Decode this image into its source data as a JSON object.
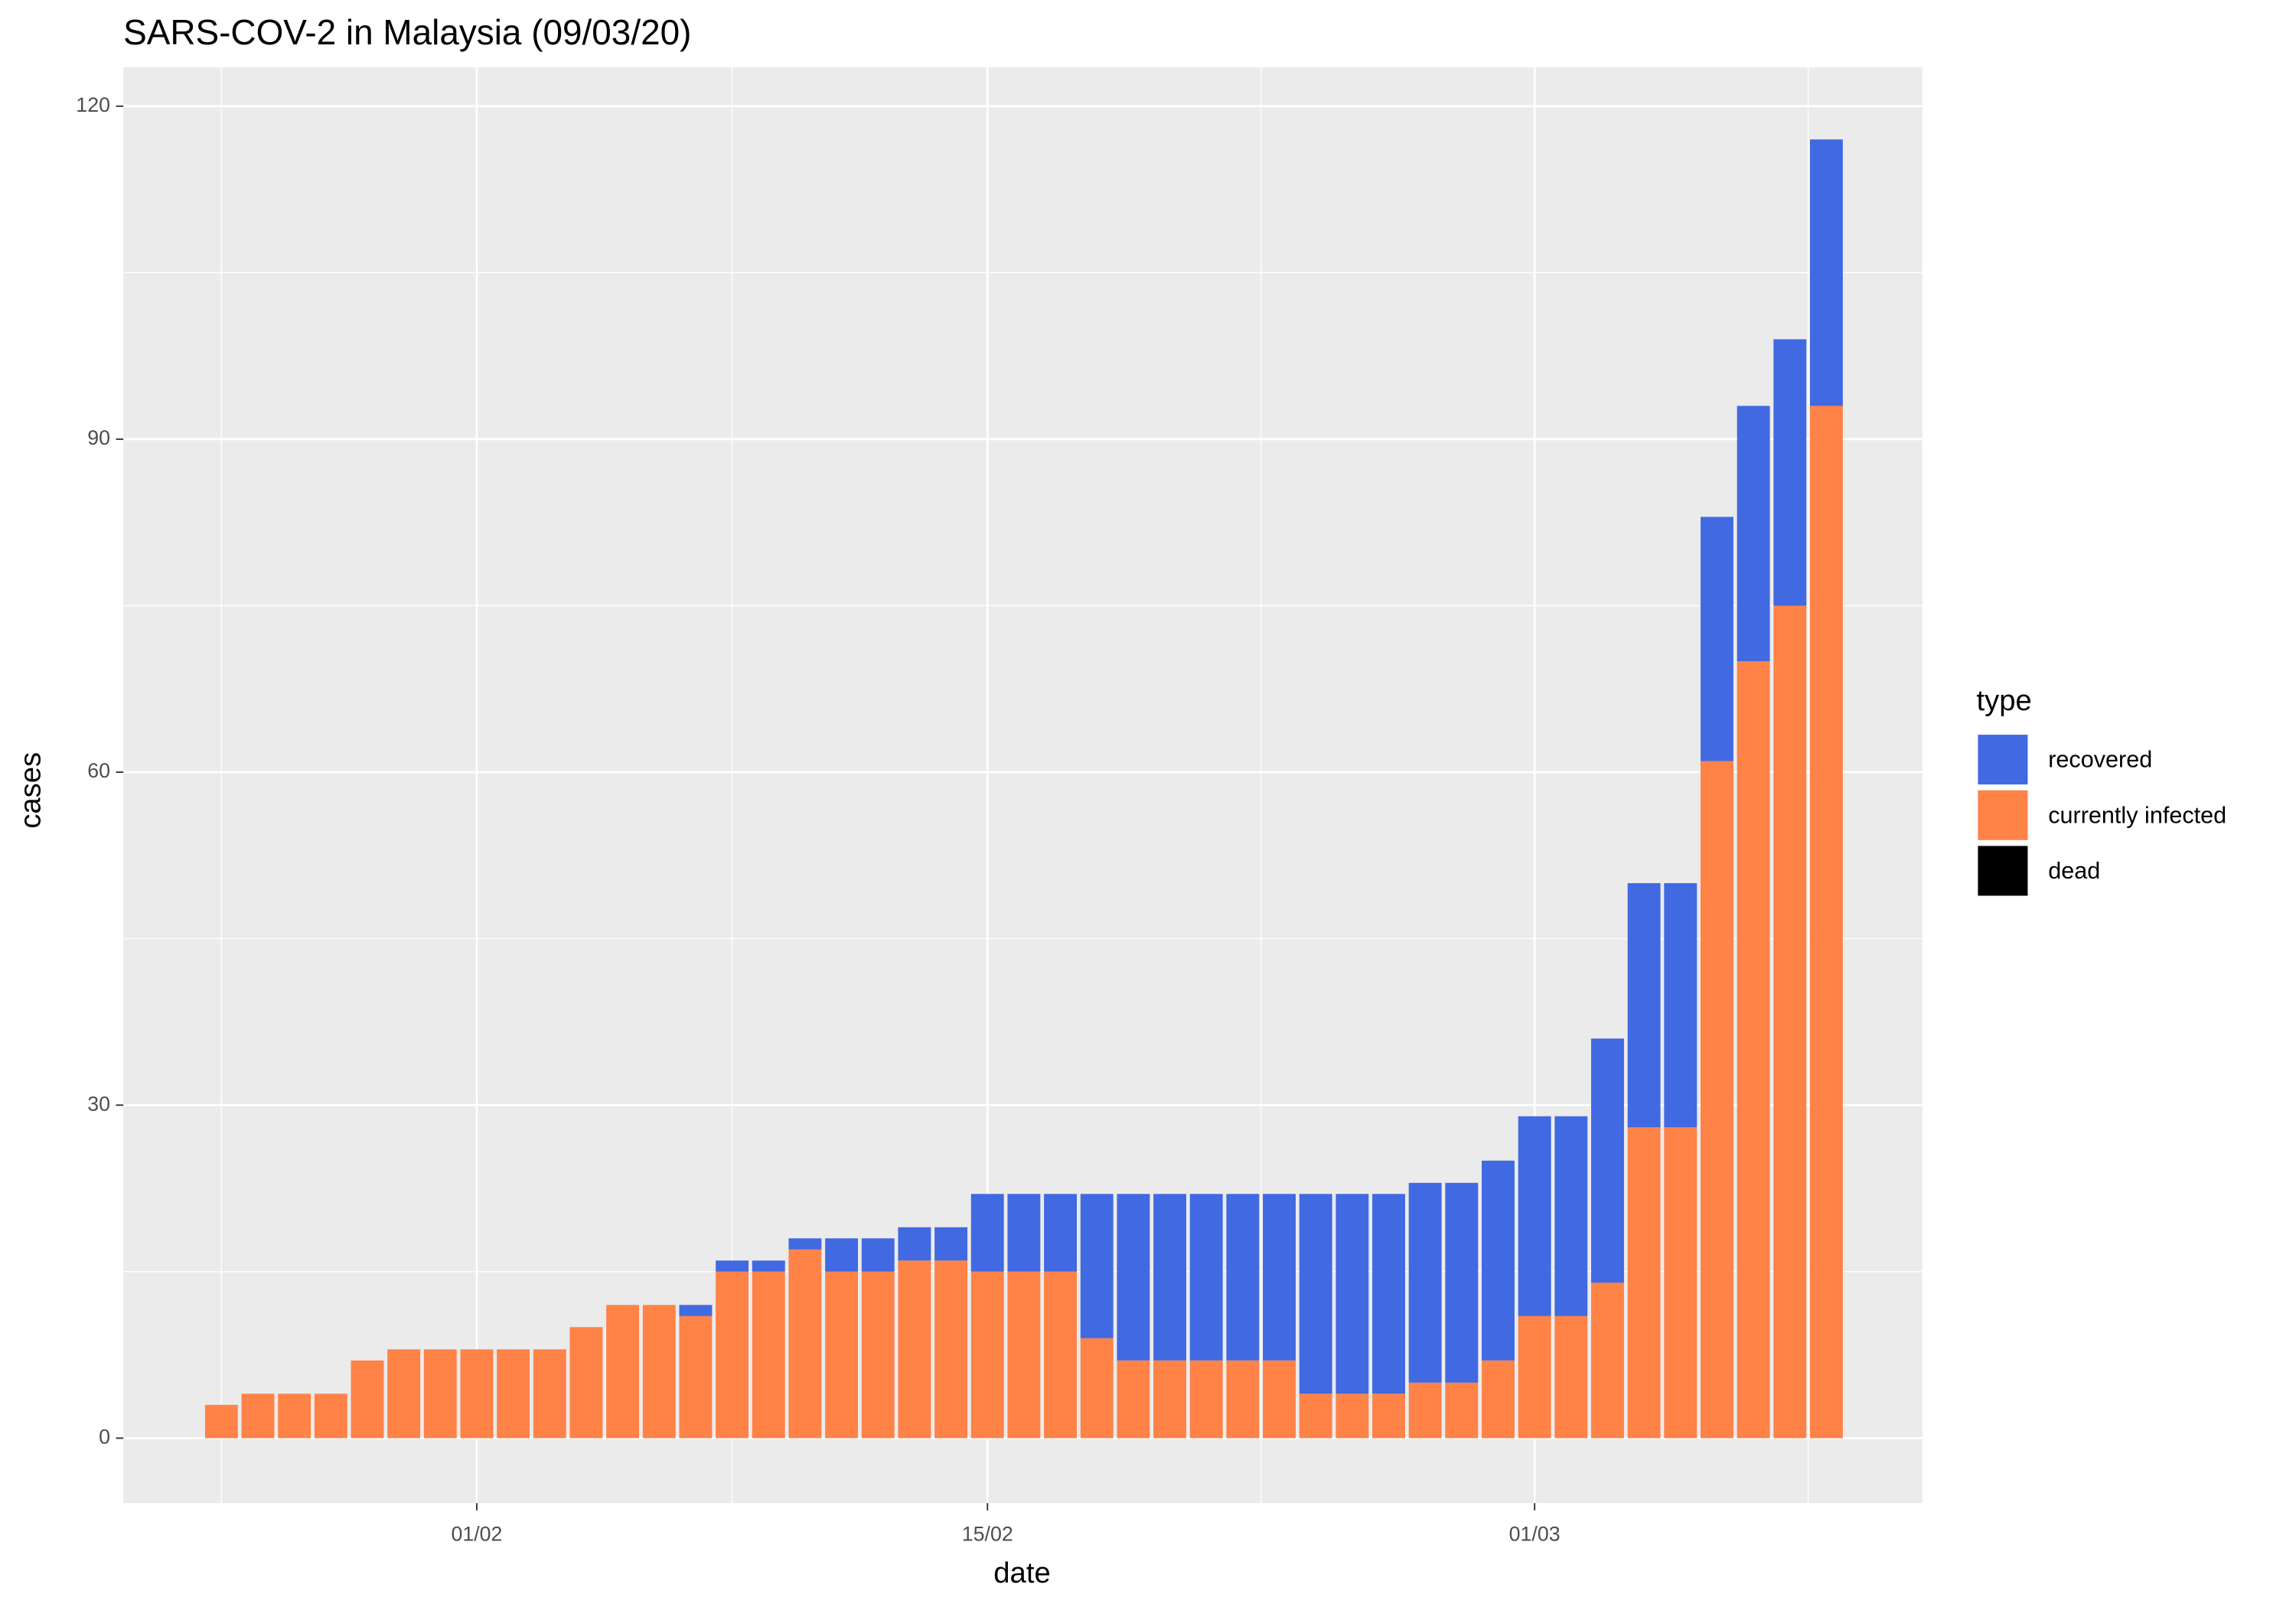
{
  "chart_data": {
    "type": "stacked_bar",
    "title": "SARS-COV-2 in Malaysia (09/03/20)",
    "x_label": "date",
    "y_label": "cases",
    "legend_title": "type",
    "categories": [
      null,
      null,
      null,
      null,
      null,
      null,
      null,
      "01/02",
      null,
      null,
      null,
      null,
      null,
      null,
      null,
      null,
      null,
      null,
      null,
      null,
      null,
      "15/02",
      null,
      null,
      null,
      null,
      null,
      null,
      null,
      null,
      null,
      null,
      null,
      null,
      null,
      null,
      "01/03",
      null,
      null,
      null,
      null,
      null,
      null,
      null,
      null
    ],
    "series": [
      {
        "name": "recovered",
        "color": "#4169e1",
        "values": [
          0,
          0,
          0,
          0,
          0,
          0,
          0,
          0,
          0,
          0,
          0,
          0,
          0,
          1,
          1,
          1,
          1,
          3,
          3,
          3,
          3,
          7,
          7,
          7,
          13,
          15,
          15,
          15,
          15,
          15,
          18,
          18,
          18,
          18,
          18,
          18,
          18,
          18,
          22,
          22,
          22,
          22,
          23,
          24,
          24
        ]
      },
      {
        "name": "currently infected",
        "color": "#ff8247",
        "values": [
          3,
          4,
          4,
          4,
          7,
          8,
          8,
          8,
          8,
          8,
          10,
          12,
          12,
          11,
          15,
          15,
          17,
          15,
          15,
          16,
          16,
          15,
          15,
          15,
          9,
          7,
          7,
          7,
          7,
          7,
          4,
          4,
          4,
          5,
          5,
          7,
          11,
          11,
          14,
          28,
          28,
          61,
          70,
          75,
          93
        ]
      },
      {
        "name": "dead",
        "color": "#000000",
        "values": [
          0,
          0,
          0,
          0,
          0,
          0,
          0,
          0,
          0,
          0,
          0,
          0,
          0,
          0,
          0,
          0,
          0,
          0,
          0,
          0,
          0,
          0,
          0,
          0,
          0,
          0,
          0,
          0,
          0,
          0,
          0,
          0,
          0,
          0,
          0,
          0,
          0,
          0,
          0,
          0,
          0,
          0,
          0,
          0,
          0
        ]
      }
    ],
    "ylim": [
      -5.85,
      123.5
    ],
    "yticks": [
      0,
      30,
      60,
      90,
      120
    ],
    "grid": true,
    "legend_position": "right"
  }
}
